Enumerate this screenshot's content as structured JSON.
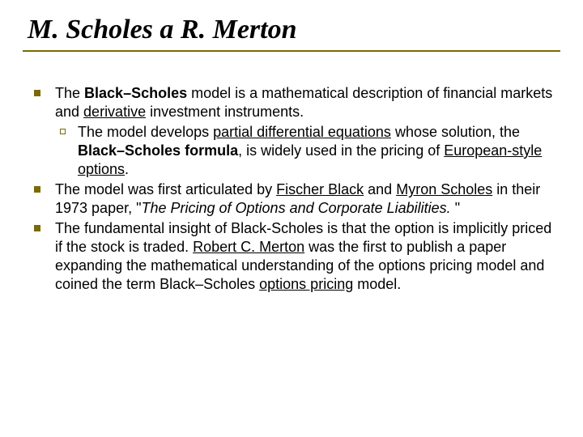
{
  "slide": {
    "title": "M. Scholes a R. Merton",
    "title_color": "#000000",
    "title_fontsize": 34,
    "rule_color": "#7a6a00",
    "bullet_fill": "#7a6a00",
    "body_fontsize": 18,
    "background_color": "#ffffff",
    "bullets": [
      {
        "runs": [
          {
            "t": "The "
          },
          {
            "t": "Black–Scholes",
            "b": true
          },
          {
            "t": " model is a mathematical description of financial markets and "
          },
          {
            "t": "derivative",
            "u": true
          },
          {
            "t": " investment instruments."
          }
        ],
        "sub": [
          {
            "runs": [
              {
                "t": "The model develops "
              },
              {
                "t": "partial differential equations",
                "u": true
              },
              {
                "t": " whose solution, the "
              },
              {
                "t": "Black–Scholes formula",
                "b": true
              },
              {
                "t": ", is widely used in the pricing of "
              },
              {
                "t": "European-style",
                "u": true
              },
              {
                "t": " "
              },
              {
                "t": "options",
                "u": true
              },
              {
                "t": "."
              }
            ]
          }
        ]
      },
      {
        "runs": [
          {
            "t": "The model was first articulated by "
          },
          {
            "t": "Fischer Black",
            "u": true
          },
          {
            "t": " and "
          },
          {
            "t": "Myron Scholes",
            "u": true
          },
          {
            "t": " in their 1973 paper, \""
          },
          {
            "t": "The Pricing of Options and Corporate Liabilities.",
            "i": true
          },
          {
            "t": " \""
          }
        ]
      },
      {
        "runs": [
          {
            "t": "The fundamental insight of Black-Scholes is that the option is implicitly priced if the stock is traded. "
          },
          {
            "t": "Robert C. Merton",
            "u": true
          },
          {
            "t": " was the first to publish a paper expanding the mathematical understanding of the options pricing model and coined the term Black–Scholes "
          },
          {
            "t": "options pricing",
            "u": true
          },
          {
            "t": " model."
          }
        ]
      }
    ]
  }
}
